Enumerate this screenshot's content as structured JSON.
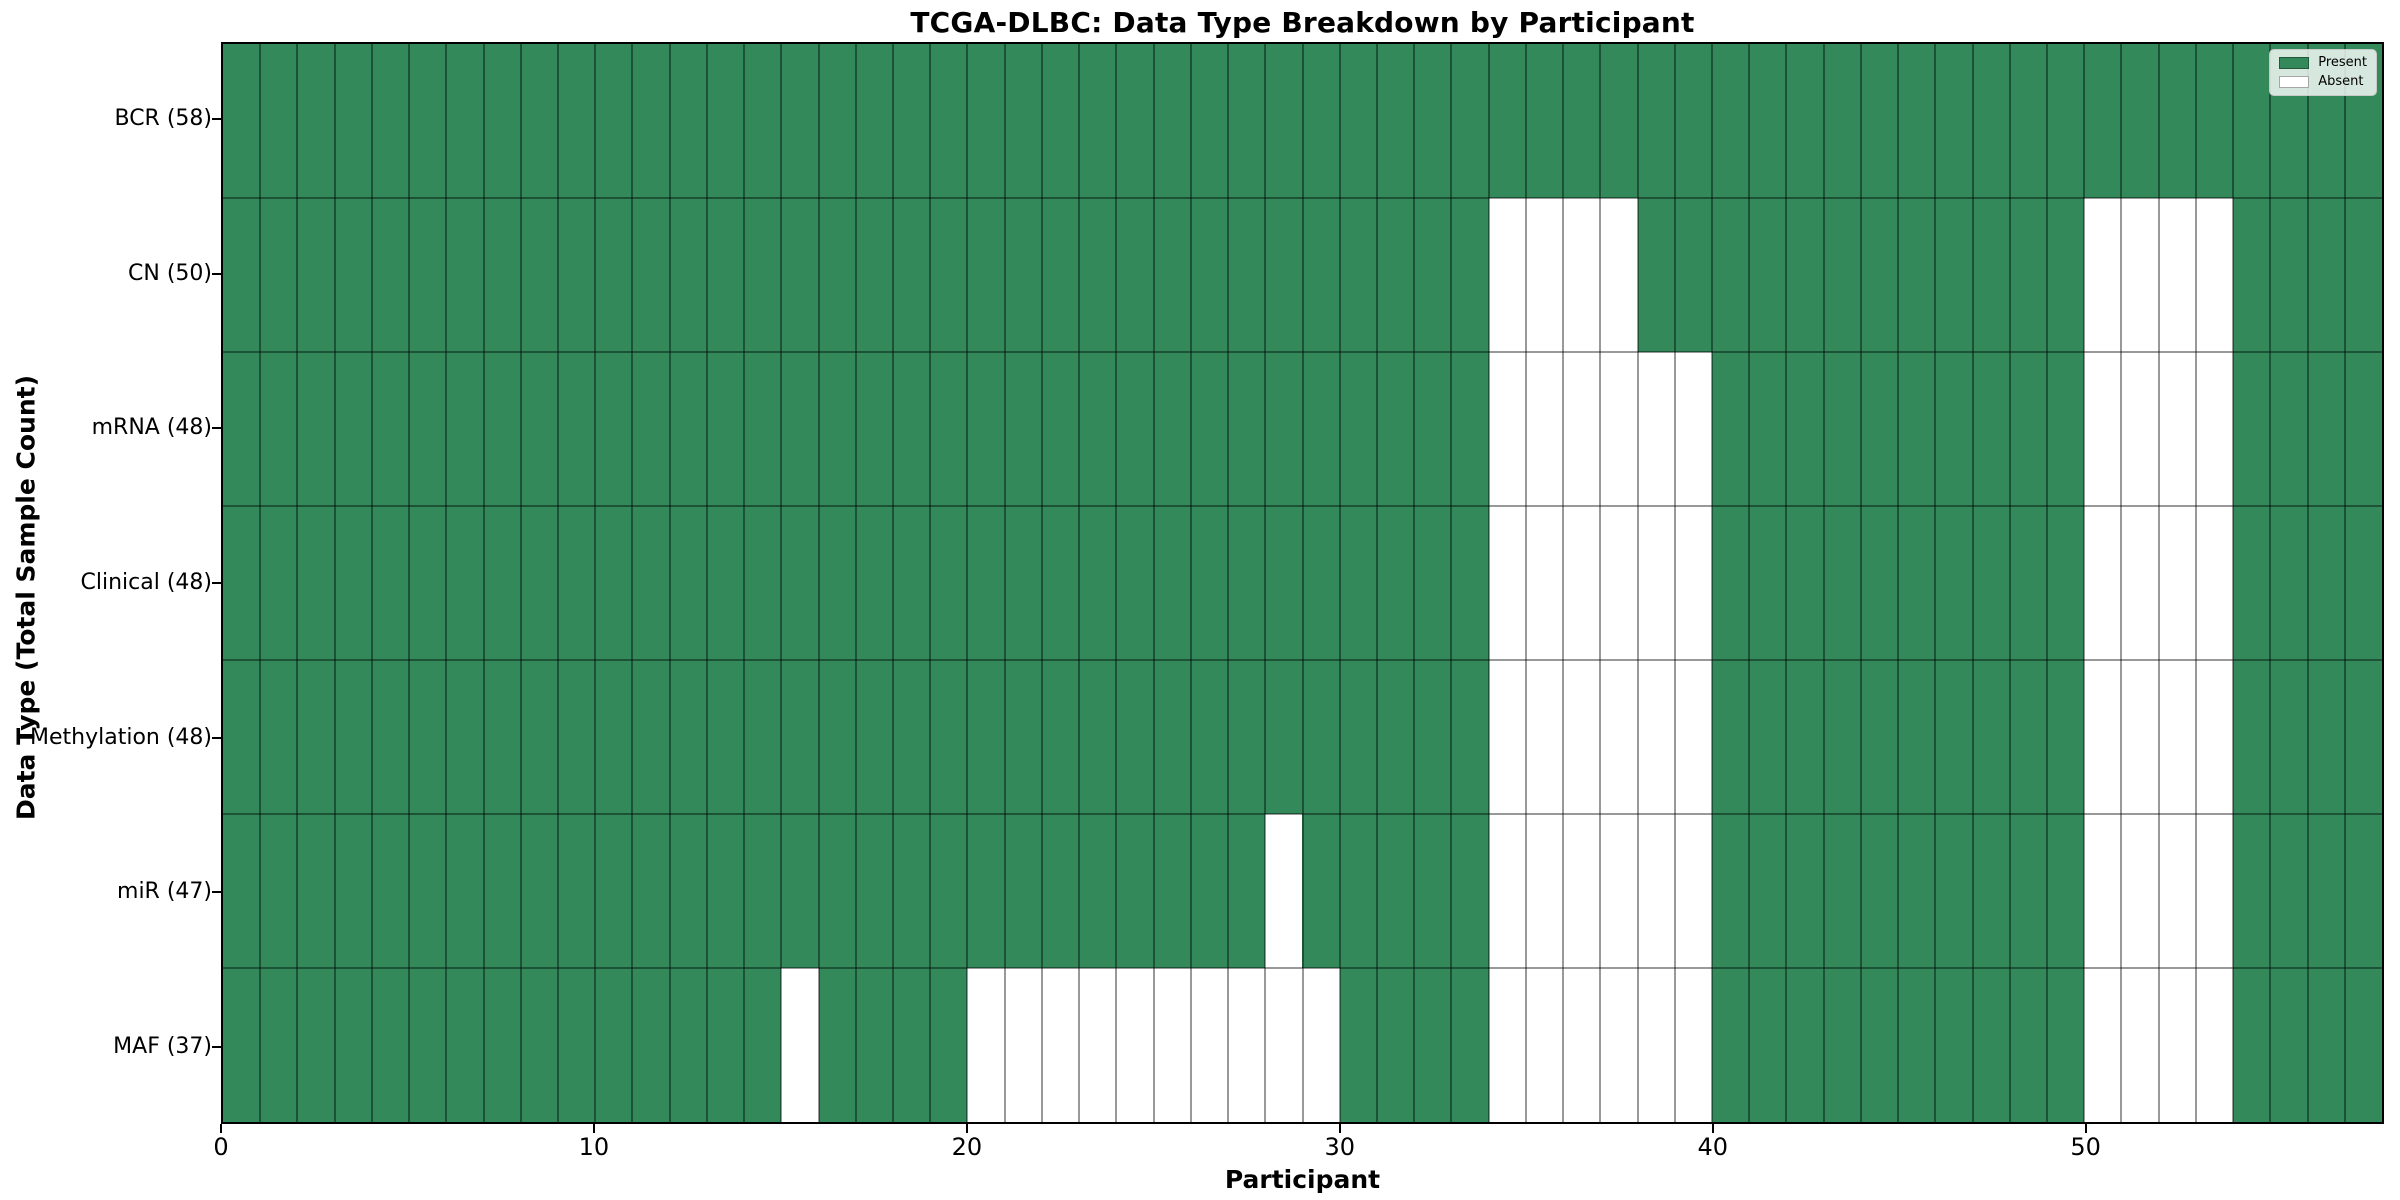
{
  "figure": {
    "title": "TCGA-DLBC: Data Type Breakdown by Participant",
    "xlabel": "Participant",
    "ylabel": "Data Type (Total Sample Count)"
  },
  "legend": {
    "items": [
      {
        "label": "Present",
        "color": "#33895A"
      },
      {
        "label": "Absent",
        "color": "#FFFFFF"
      }
    ]
  },
  "chart_data": {
    "type": "heatmap",
    "title": "TCGA-DLBC: Data Type Breakdown by Participant",
    "xlabel": "Participant",
    "ylabel": "Data Type (Total Sample Count)",
    "x_ticks": [
      0,
      10,
      20,
      30,
      40,
      50
    ],
    "x_range": [
      0,
      58
    ],
    "n_participants": 58,
    "grid": true,
    "legend_position": "upper right",
    "colors": {
      "present": "#33895A",
      "absent": "#FFFFFF"
    },
    "rows": [
      {
        "label": "BCR (58)",
        "data_type": "BCR",
        "present_count": 58,
        "absent_participant_ranges": []
      },
      {
        "label": "CN (50)",
        "data_type": "CN",
        "present_count": 50,
        "absent_participant_ranges": [
          [
            34,
            38
          ],
          [
            50,
            54
          ]
        ]
      },
      {
        "label": "mRNA (48)",
        "data_type": "mRNA",
        "present_count": 48,
        "absent_participant_ranges": [
          [
            34,
            40
          ],
          [
            50,
            54
          ]
        ]
      },
      {
        "label": "Clinical (48)",
        "data_type": "Clinical",
        "present_count": 48,
        "absent_participant_ranges": [
          [
            34,
            40
          ],
          [
            50,
            54
          ]
        ]
      },
      {
        "label": "Methylation (48)",
        "data_type": "Methylation",
        "present_count": 48,
        "absent_participant_ranges": [
          [
            34,
            40
          ],
          [
            50,
            54
          ]
        ]
      },
      {
        "label": "miR (47)",
        "data_type": "miR",
        "present_count": 47,
        "absent_participant_ranges": [
          [
            28,
            29
          ],
          [
            34,
            40
          ],
          [
            50,
            54
          ]
        ]
      },
      {
        "label": "MAF (37)",
        "data_type": "MAF",
        "present_count": 37,
        "absent_participant_ranges": [
          [
            15,
            16
          ],
          [
            20,
            30
          ],
          [
            34,
            40
          ],
          [
            50,
            54
          ]
        ]
      }
    ]
  }
}
